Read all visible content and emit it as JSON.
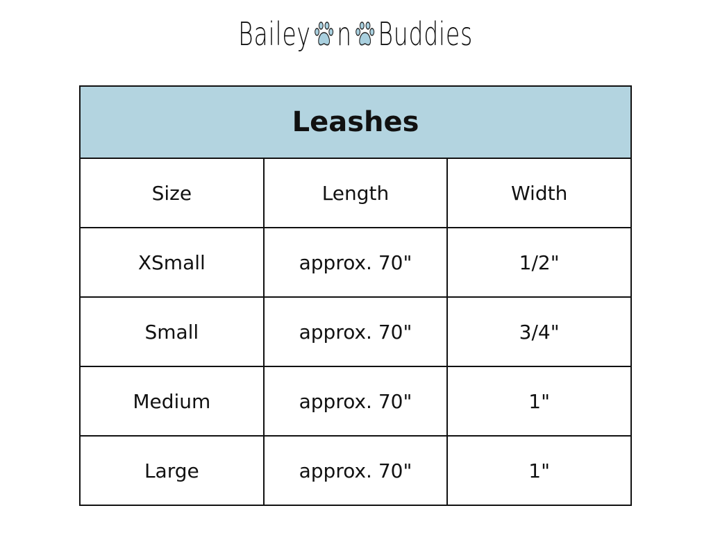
{
  "logo": {
    "word1": "Bailey",
    "word2": "n",
    "word3": "Buddies",
    "paw_color": "#a9d0df"
  },
  "table": {
    "title": "Leashes",
    "header_color": "#b3d4e0",
    "columns": [
      "Size",
      "Length",
      "Width"
    ],
    "rows": [
      [
        "XSmall",
        "approx. 70\"",
        "1/2\""
      ],
      [
        "Small",
        "approx. 70\"",
        "3/4\""
      ],
      [
        "Medium",
        "approx. 70\"",
        "1\""
      ],
      [
        "Large",
        "approx. 70\"",
        "1\""
      ]
    ]
  }
}
